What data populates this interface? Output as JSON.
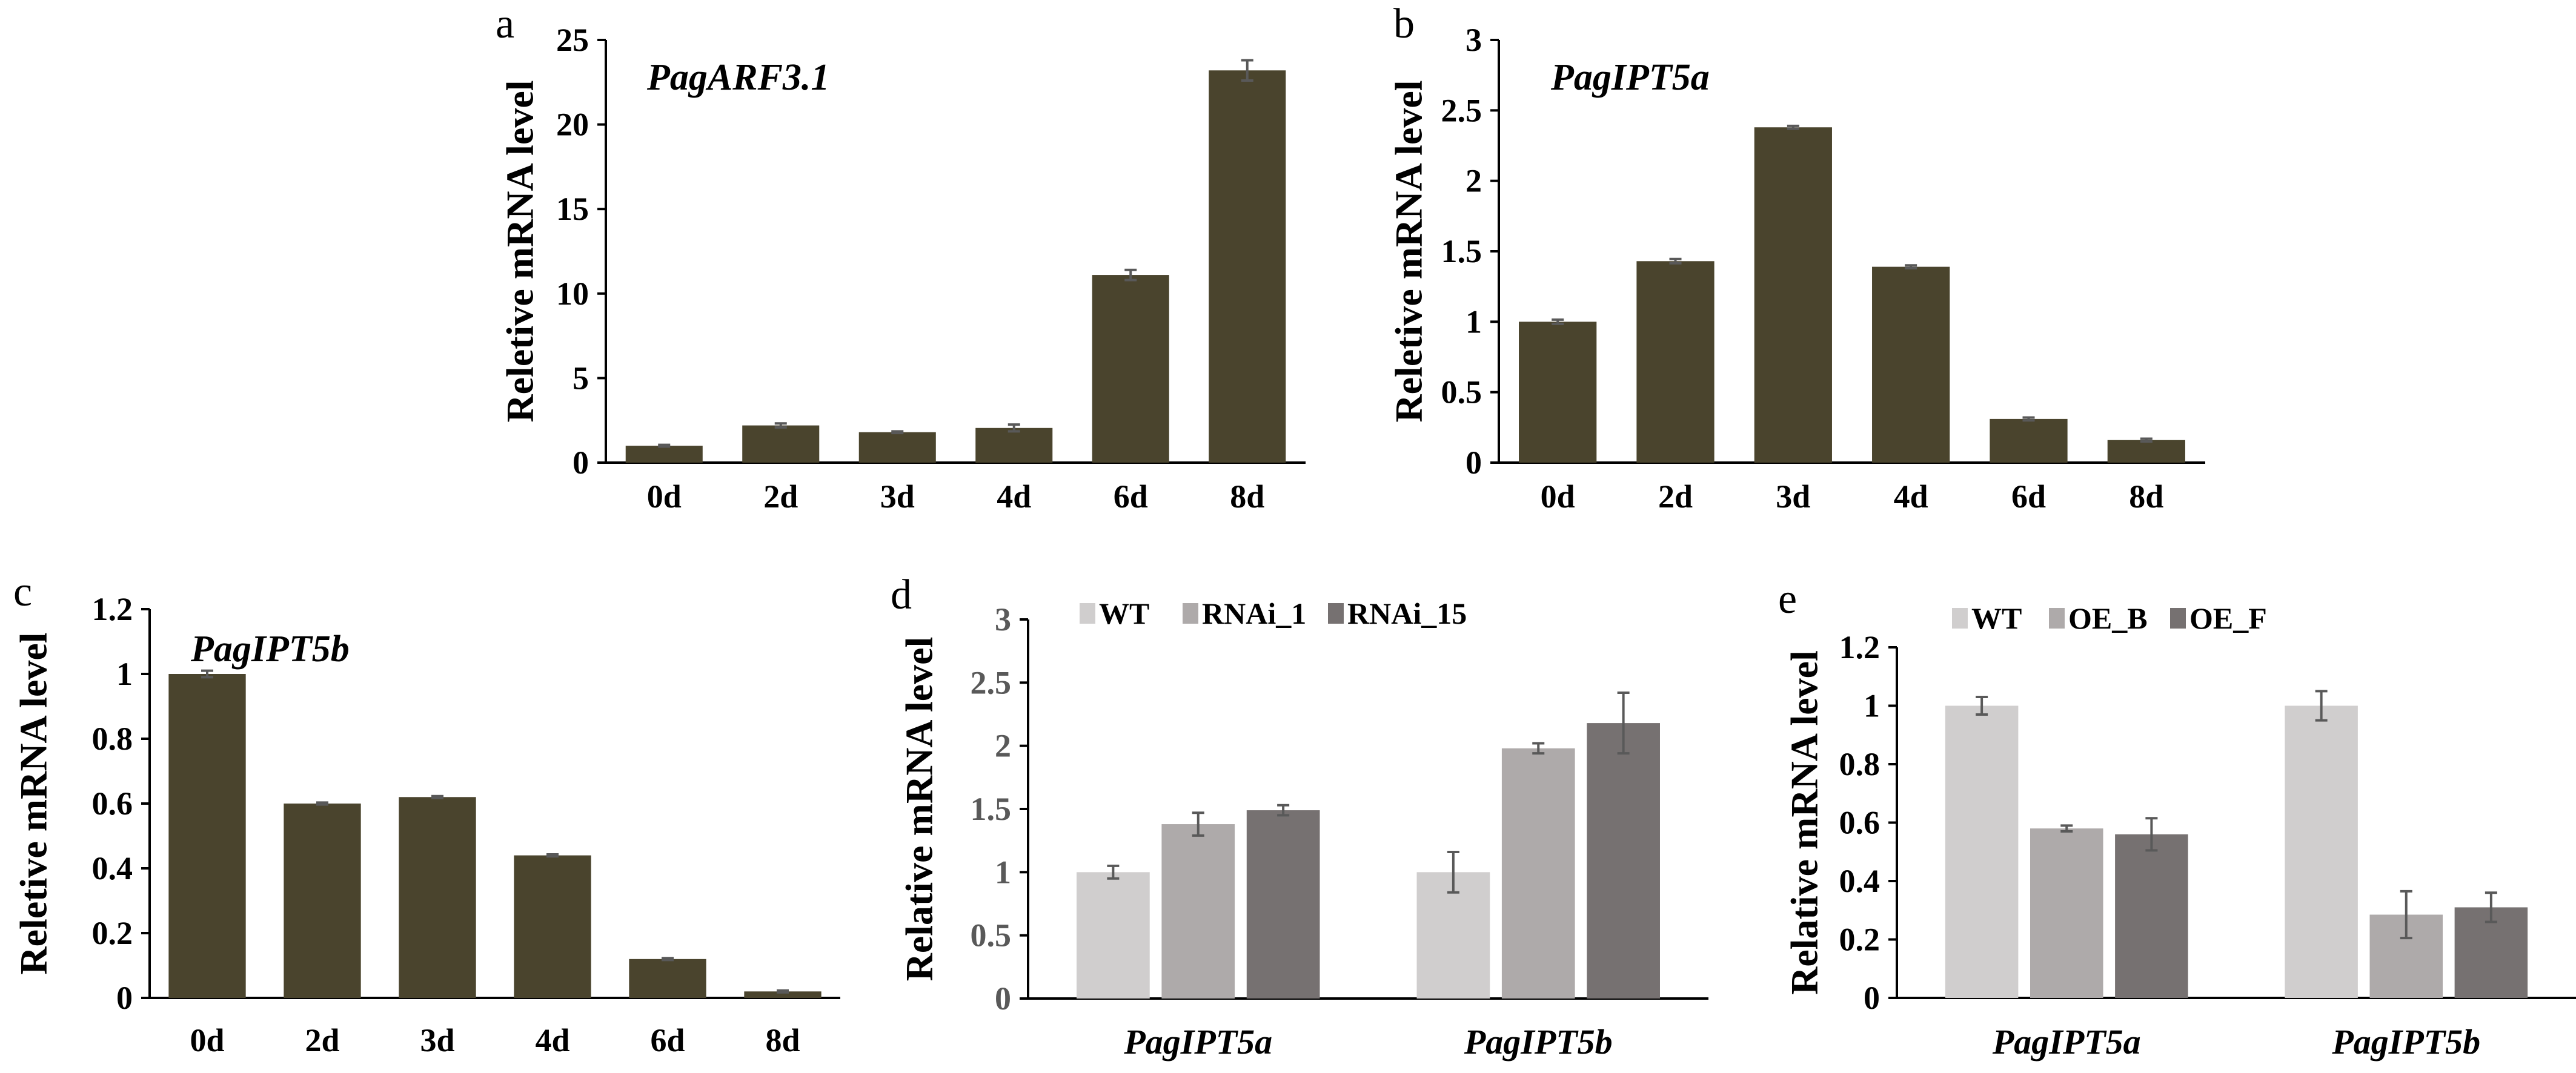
{
  "colors": {
    "bar_dark": "#4a442d",
    "error_bar": "#595959",
    "axis": "#000000",
    "WT": "#d0cece",
    "mid": "#aeaaaa",
    "dark": "#767171"
  },
  "chart_data": [
    {
      "id": "a",
      "type": "bar",
      "panel_label": "a",
      "title": "PagARF3.1",
      "ylabel": "Reletive mRNA level",
      "xlabel": "",
      "categories": [
        "0d",
        "2d",
        "3d",
        "4d",
        "6d",
        "8d"
      ],
      "values": [
        1.0,
        2.2,
        1.8,
        2.05,
        11.1,
        23.2
      ],
      "errors": [
        0.05,
        0.12,
        0.05,
        0.2,
        0.3,
        0.6
      ],
      "ylim": [
        0,
        25
      ],
      "yticks": [
        "0",
        "5",
        "10",
        "15",
        "20",
        "25"
      ],
      "ytick_values": [
        0,
        5,
        10,
        15,
        20,
        25
      ],
      "grid": false
    },
    {
      "id": "b",
      "type": "bar",
      "panel_label": "b",
      "title": "PagIPT5a",
      "ylabel": "Reletive mRNA level",
      "xlabel": "",
      "categories": [
        "0d",
        "2d",
        "3d",
        "4d",
        "6d",
        "8d"
      ],
      "values": [
        1.0,
        1.43,
        2.38,
        1.39,
        0.31,
        0.16
      ],
      "errors": [
        0.015,
        0.015,
        0.01,
        0.01,
        0.01,
        0.01
      ],
      "ylim": [
        0,
        3
      ],
      "yticks": [
        "0",
        "0.5",
        "1",
        "1.5",
        "2",
        "2.5",
        "3"
      ],
      "ytick_values": [
        0,
        0.5,
        1,
        1.5,
        2,
        2.5,
        3
      ],
      "grid": false
    },
    {
      "id": "c",
      "type": "bar",
      "panel_label": "c",
      "title": "PagIPT5b",
      "ylabel": "Reletive mRNA level",
      "xlabel": "",
      "categories": [
        "0d",
        "2d",
        "3d",
        "4d",
        "6d",
        "8d"
      ],
      "values": [
        1.0,
        0.6,
        0.62,
        0.44,
        0.12,
        0.02
      ],
      "errors": [
        0.01,
        0.003,
        0.003,
        0.003,
        0.003,
        0.003
      ],
      "ylim": [
        0,
        1.2
      ],
      "yticks": [
        "0",
        "0.2",
        "0.4",
        "0.6",
        "0.8",
        "1",
        "1.2"
      ],
      "ytick_values": [
        0,
        0.2,
        0.4,
        0.6,
        0.8,
        1.0,
        1.2
      ],
      "grid": false
    },
    {
      "id": "d",
      "type": "bar",
      "panel_label": "d",
      "ylabel": "Relative mRNA level",
      "xlabel": "",
      "categories": [
        "PagIPT5a",
        "PagIPT5b"
      ],
      "series": [
        {
          "name": "WT",
          "values": [
            1.0,
            1.0
          ],
          "errors": [
            0.05,
            0.16
          ]
        },
        {
          "name": "RNAi_1",
          "values": [
            1.38,
            1.98
          ],
          "errors": [
            0.09,
            0.04
          ]
        },
        {
          "name": "RNAi_15",
          "values": [
            1.49,
            2.18
          ],
          "errors": [
            0.04,
            0.24
          ]
        }
      ],
      "ylim": [
        0,
        3
      ],
      "yticks": [
        "0",
        "0.5",
        "1",
        "1.5",
        "2",
        "2.5",
        "3"
      ],
      "ytick_values": [
        0,
        0.5,
        1,
        1.5,
        2,
        2.5,
        3
      ],
      "legend_position": "top-left",
      "grid": false
    },
    {
      "id": "e",
      "type": "bar",
      "panel_label": "e",
      "ylabel": "Relative mRNA level",
      "xlabel": "",
      "categories": [
        "PagIPT5a",
        "PagIPT5b"
      ],
      "series": [
        {
          "name": "WT",
          "values": [
            1.0,
            1.0
          ],
          "errors": [
            0.03,
            0.05
          ]
        },
        {
          "name": "OE_B",
          "values": [
            0.58,
            0.285
          ],
          "errors": [
            0.01,
            0.08
          ]
        },
        {
          "name": "OE_F",
          "values": [
            0.56,
            0.31
          ],
          "errors": [
            0.055,
            0.05
          ]
        }
      ],
      "ylim": [
        0,
        1.2
      ],
      "yticks": [
        "0",
        "0.2",
        "0.4",
        "0.6",
        "0.8",
        "1",
        "1.2"
      ],
      "ytick_values": [
        0,
        0.2,
        0.4,
        0.6,
        0.8,
        1.0,
        1.2
      ],
      "legend_position": "top-left",
      "grid": false
    }
  ]
}
